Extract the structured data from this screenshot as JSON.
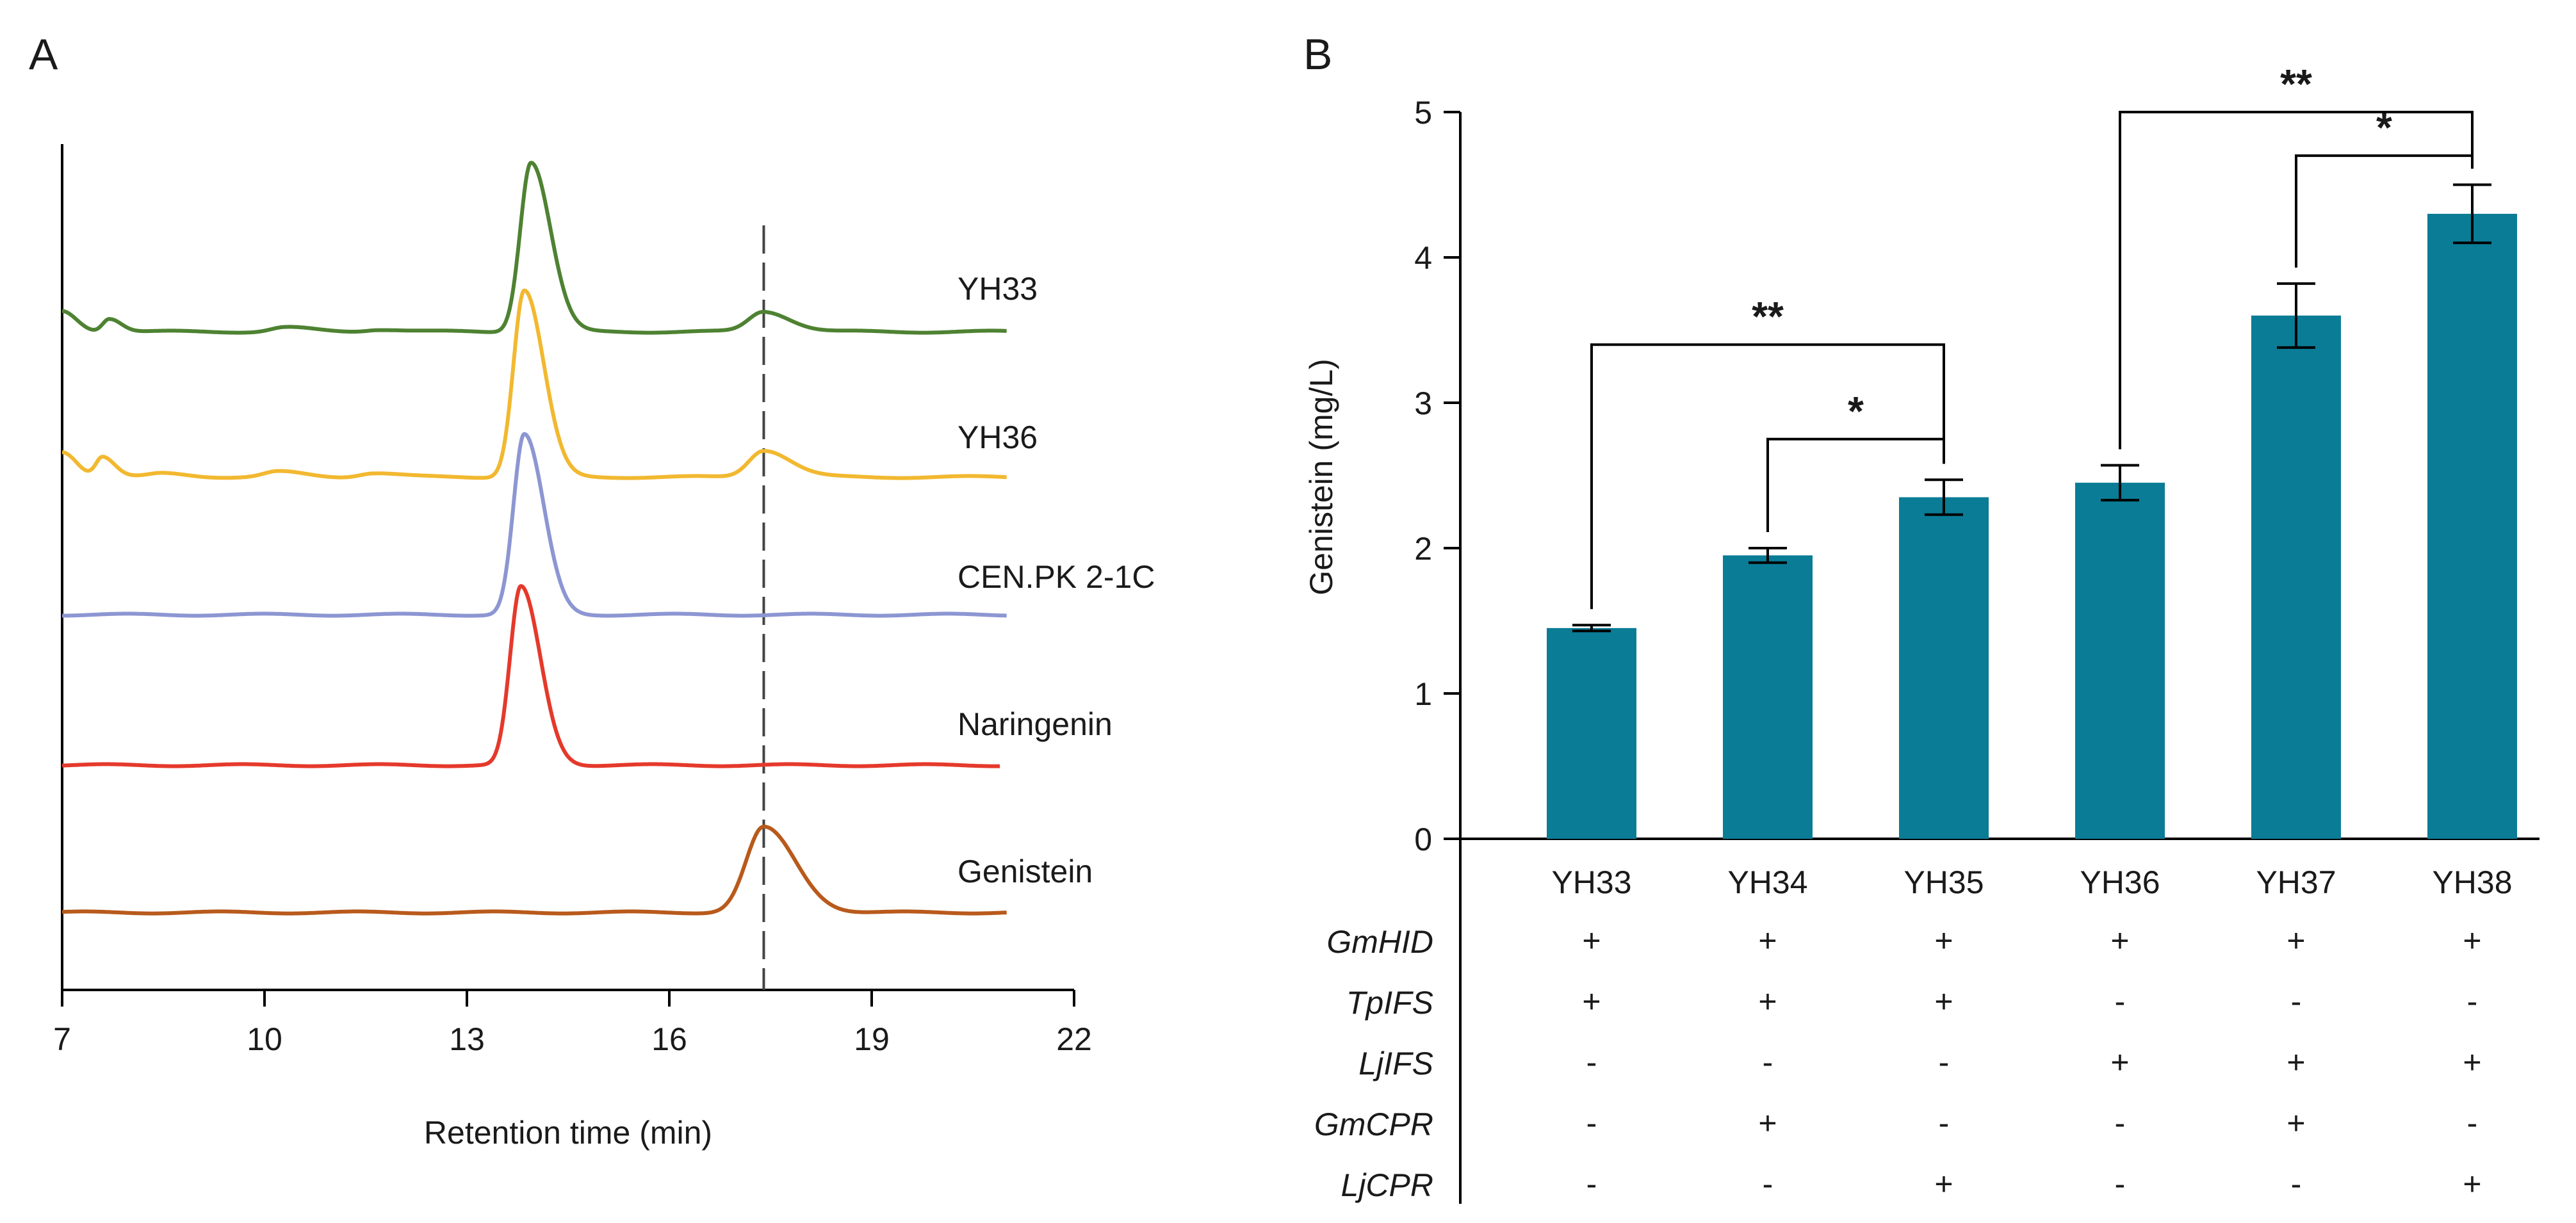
{
  "panels": {
    "a": "A",
    "b": "B"
  },
  "chart_data": [
    {
      "type": "line",
      "title": "",
      "xlabel": "Retention time (min)",
      "ylabel": "",
      "xlim": [
        7,
        22
      ],
      "xticks": [
        7,
        10,
        13,
        16,
        19,
        22
      ],
      "reference_line_x": 17.4,
      "series": [
        {
          "name": "YH33",
          "color": "#4e8232",
          "x_end": 21,
          "peaks": [
            {
              "x": 7.0,
              "h": 0.12,
              "w": 0.12
            },
            {
              "x": 7.7,
              "h": 0.08,
              "w": 0.1
            },
            {
              "x": 10.3,
              "h": 0.025,
              "w": 0.2
            },
            {
              "x": 11.7,
              "h": 0.015,
              "w": 0.2
            },
            {
              "x": 13.95,
              "h": 1.0,
              "w": 0.16
            },
            {
              "x": 17.4,
              "h": 0.12,
              "w": 0.22
            }
          ]
        },
        {
          "name": "YH36",
          "color": "#f2b830",
          "x_end": 21,
          "peaks": [
            {
              "x": 7.0,
              "h": 0.15,
              "w": 0.12
            },
            {
              "x": 7.6,
              "h": 0.12,
              "w": 0.1
            },
            {
              "x": 8.5,
              "h": 0.02,
              "w": 0.2
            },
            {
              "x": 10.2,
              "h": 0.03,
              "w": 0.2
            },
            {
              "x": 11.6,
              "h": 0.025,
              "w": 0.2
            },
            {
              "x": 13.85,
              "h": 1.1,
              "w": 0.16
            },
            {
              "x": 17.4,
              "h": 0.16,
              "w": 0.22
            }
          ]
        },
        {
          "name": "CEN.PK 2-1C",
          "color": "#8c96d2",
          "x_end": 21,
          "peaks": [
            {
              "x": 13.85,
              "h": 1.06,
              "w": 0.16
            }
          ]
        },
        {
          "name": "Naringenin",
          "color": "#e5392b",
          "x_end": 20.9,
          "peaks": [
            {
              "x": 13.8,
              "h": 1.05,
              "w": 0.16
            }
          ]
        },
        {
          "name": "Genistein",
          "color": "#b85a1c",
          "x_end": 21,
          "peaks": [
            {
              "x": 17.4,
              "h": 0.5,
              "w": 0.26
            }
          ]
        }
      ]
    },
    {
      "type": "bar",
      "title": "",
      "xlabel": "",
      "ylabel": "Genistein (mg/L)",
      "ylim": [
        0,
        5
      ],
      "yticks": [
        0,
        1,
        2,
        3,
        4,
        5
      ],
      "bar_color": "#0a7c96",
      "categories": [
        "YH33",
        "YH34",
        "YH35",
        "YH36",
        "YH37",
        "YH38"
      ],
      "values": [
        1.45,
        1.95,
        2.35,
        2.45,
        3.6,
        4.3
      ],
      "errors": [
        0.02,
        0.05,
        0.12,
        0.12,
        0.22,
        0.2
      ],
      "significance": [
        {
          "from": "YH33",
          "to": "YH35",
          "y": 3.4,
          "label": "**"
        },
        {
          "from": "YH34",
          "to": "YH35",
          "y": 2.75,
          "label": "*"
        },
        {
          "from": "YH36",
          "to": "YH38",
          "y": 5.0,
          "label": "**"
        },
        {
          "from": "YH37",
          "to": "YH38",
          "y": 4.7,
          "label": "*"
        }
      ],
      "genotype_table": [
        {
          "gene": "GmHID",
          "signs": [
            "+",
            "+",
            "+",
            "+",
            "+",
            "+"
          ]
        },
        {
          "gene": "TpIFS",
          "signs": [
            "+",
            "+",
            "+",
            "-",
            "-",
            "-"
          ]
        },
        {
          "gene": "LjIFS",
          "signs": [
            "-",
            "-",
            "-",
            "+",
            "+",
            "+"
          ]
        },
        {
          "gene": "GmCPR",
          "signs": [
            "-",
            "+",
            "-",
            "-",
            "+",
            "-"
          ]
        },
        {
          "gene": "LjCPR",
          "signs": [
            "-",
            "-",
            "+",
            "-",
            "-",
            "+"
          ]
        }
      ]
    }
  ]
}
